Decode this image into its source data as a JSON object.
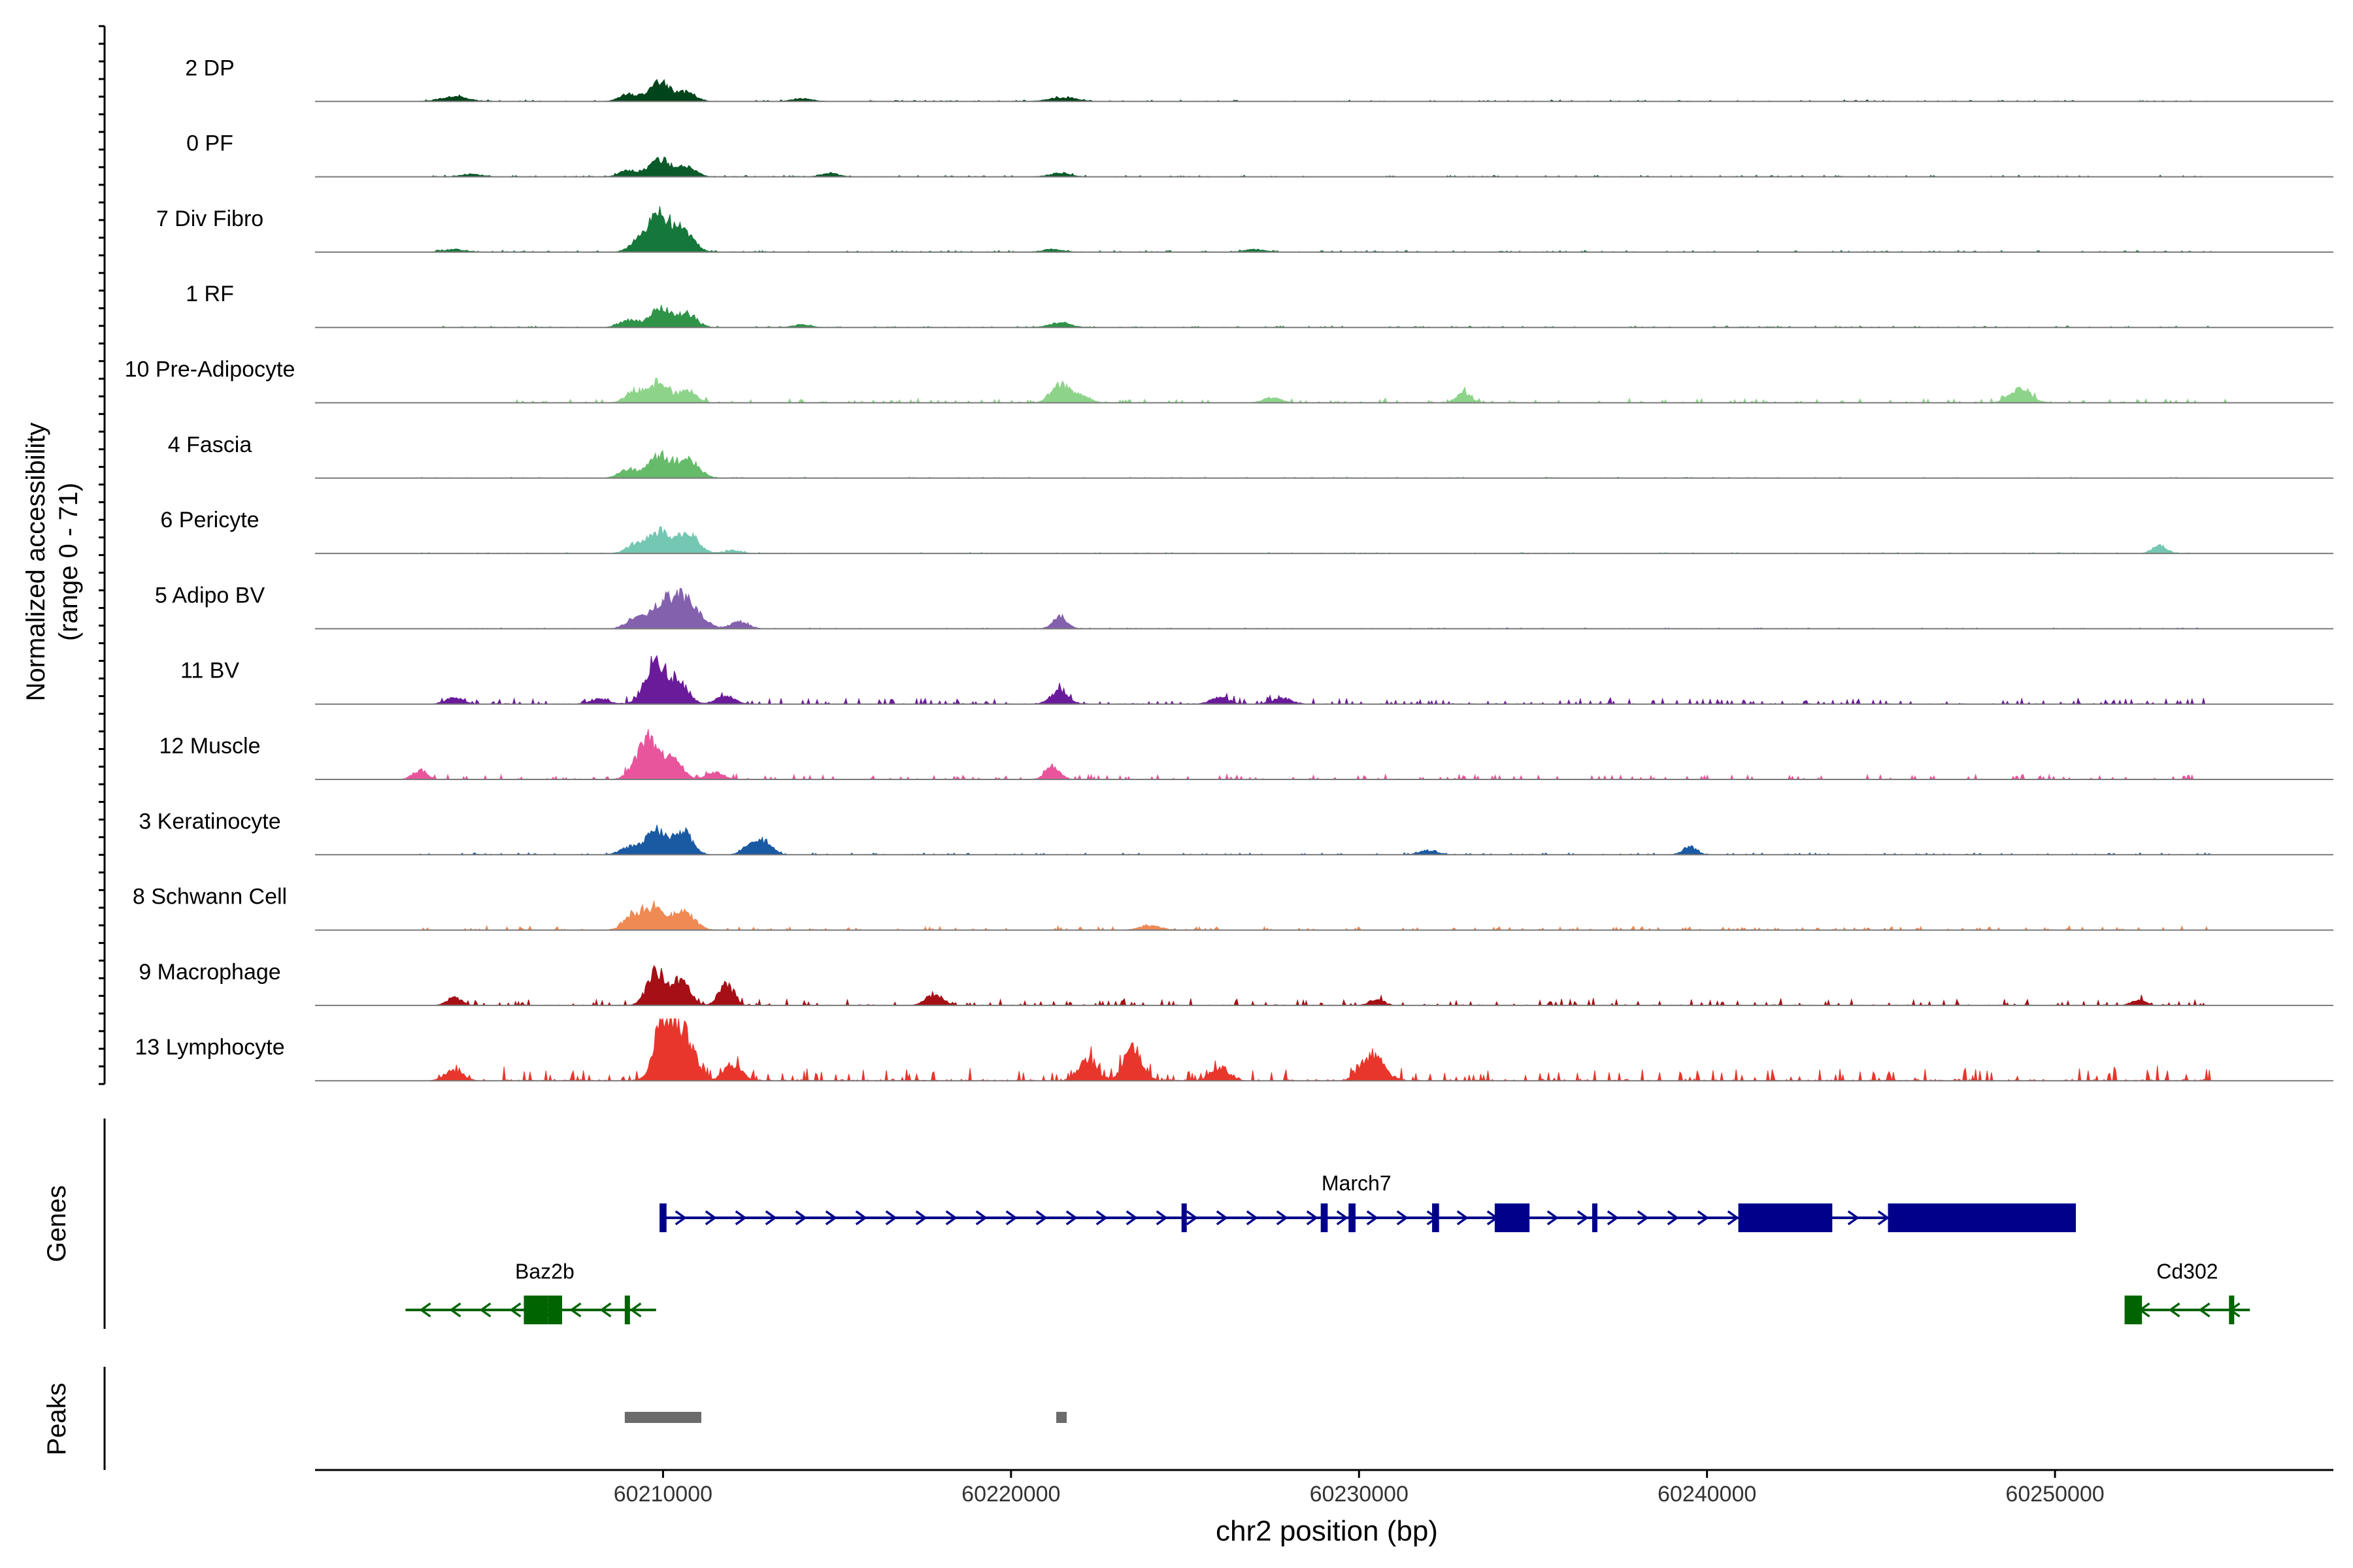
{
  "chart_data": {
    "type": "coverage",
    "chromosome": "chr2",
    "xlim": [
      60200000,
      60258000
    ],
    "xlabel": "chr2 position (bp)",
    "x_ticks": [
      60210000,
      60220000,
      60230000,
      60240000,
      60250000
    ],
    "x_tick_labels": [
      "60210000",
      "60220000",
      "60230000",
      "60240000",
      "60250000"
    ],
    "coverage_panel": {
      "ylabel_line1": "Normalized accessibility",
      "ylabel_line2": "(range 0 - 71)",
      "ylim": [
        0,
        71
      ]
    },
    "tracks": [
      {
        "name": "2 DP",
        "color": "#00441b",
        "peaks": [
          [
            60209900,
            22,
            300
          ],
          [
            60209000,
            8,
            250
          ],
          [
            60210700,
            10,
            250
          ],
          [
            60204000,
            5,
            400
          ],
          [
            60221500,
            4,
            400
          ],
          [
            60214000,
            3,
            300
          ]
        ],
        "noise": 1.2,
        "noise_range": [
          60203000,
          60254500
        ]
      },
      {
        "name": "0 PF",
        "color": "#0b5a2a",
        "peaks": [
          [
            60209900,
            20,
            300
          ],
          [
            60209000,
            7,
            250
          ],
          [
            60210700,
            11,
            250
          ],
          [
            60221400,
            4,
            300
          ],
          [
            60214800,
            4,
            250
          ],
          [
            60204500,
            3,
            300
          ]
        ],
        "noise": 1.2,
        "noise_range": [
          60203000,
          60254500
        ]
      },
      {
        "name": "7 Div Fibro",
        "color": "#16773a",
        "peaks": [
          [
            60209900,
            40,
            350
          ],
          [
            60210600,
            20,
            300
          ],
          [
            60209300,
            10,
            250
          ],
          [
            60204000,
            3,
            300
          ],
          [
            60221200,
            3,
            300
          ],
          [
            60227000,
            3,
            300
          ]
        ],
        "noise": 1.4,
        "noise_range": [
          60203000,
          60254500
        ]
      },
      {
        "name": "1 RF",
        "color": "#2f9348",
        "peaks": [
          [
            60209900,
            22,
            300
          ],
          [
            60210700,
            16,
            250
          ],
          [
            60209000,
            8,
            250
          ],
          [
            60221400,
            5,
            300
          ],
          [
            60214000,
            3,
            250
          ]
        ],
        "noise": 1.2,
        "noise_range": [
          60203000,
          60254500
        ]
      },
      {
        "name": "10 Pre-Adipocyte",
        "color": "#8dd48a",
        "peaks": [
          [
            60209900,
            24,
            250
          ],
          [
            60209200,
            14,
            250
          ],
          [
            60210700,
            14,
            250
          ],
          [
            60221400,
            20,
            250
          ],
          [
            60233000,
            12,
            200
          ],
          [
            60249000,
            15,
            300
          ],
          [
            60222000,
            8,
            250
          ],
          [
            60227500,
            6,
            250
          ]
        ],
        "noise": 3.5,
        "noise_range": [
          60205500,
          60255000
        ]
      },
      {
        "name": "4 Fascia",
        "color": "#66bb6a",
        "peaks": [
          [
            60209900,
            25,
            300
          ],
          [
            60210700,
            22,
            300
          ],
          [
            60209000,
            10,
            250
          ]
        ],
        "noise": 0.8,
        "noise_range": [
          60203000,
          60254500
        ]
      },
      {
        "name": "6 Pericyte",
        "color": "#74c7b2",
        "peaks": [
          [
            60209900,
            24,
            300
          ],
          [
            60210700,
            22,
            300
          ],
          [
            60209200,
            10,
            250
          ],
          [
            60253000,
            9,
            200
          ],
          [
            60212000,
            3,
            250
          ]
        ],
        "noise": 0.8,
        "noise_range": [
          60203000,
          60254500
        ]
      },
      {
        "name": "5 Adipo BV",
        "color": "#8461ad",
        "peaks": [
          [
            60209900,
            24,
            300
          ],
          [
            60210600,
            35,
            400
          ],
          [
            60209200,
            12,
            250
          ],
          [
            60221400,
            14,
            200
          ],
          [
            60212200,
            8,
            250
          ]
        ],
        "noise": 0.8,
        "noise_range": [
          60203000,
          60254500
        ]
      },
      {
        "name": "11 BV",
        "color": "#6a1b9a",
        "peaks": [
          [
            60209800,
            50,
            300
          ],
          [
            60210500,
            22,
            250
          ],
          [
            60211800,
            9,
            250
          ],
          [
            60221400,
            14,
            250
          ],
          [
            60204000,
            7,
            250
          ],
          [
            60208200,
            6,
            250
          ],
          [
            60226000,
            8,
            250
          ],
          [
            60227800,
            7,
            250
          ]
        ],
        "noise": 5.0,
        "noise_range": [
          60203500,
          60254500
        ]
      },
      {
        "name": "12 Muscle",
        "color": "#e8559c",
        "peaks": [
          [
            60209700,
            38,
            250
          ],
          [
            60210300,
            22,
            250
          ],
          [
            60209300,
            20,
            250
          ],
          [
            60221200,
            14,
            200
          ],
          [
            60203000,
            10,
            200
          ],
          [
            60211500,
            8,
            250
          ]
        ],
        "noise": 4.0,
        "noise_range": [
          60203000,
          60254000
        ]
      },
      {
        "name": "3 Keratinocyte",
        "color": "#1a5aa3",
        "peaks": [
          [
            60209800,
            28,
            300
          ],
          [
            60210600,
            25,
            250
          ],
          [
            60212600,
            14,
            250
          ],
          [
            60213000,
            10,
            200
          ],
          [
            60239500,
            9,
            200
          ],
          [
            60209000,
            8,
            250
          ],
          [
            60232000,
            5,
            250
          ]
        ],
        "noise": 1.5,
        "noise_range": [
          60203000,
          60254500
        ]
      },
      {
        "name": "8 Schwann Cell",
        "color": "#ef8a55",
        "peaks": [
          [
            60209700,
            25,
            350
          ],
          [
            60210600,
            20,
            300
          ],
          [
            60209100,
            12,
            250
          ],
          [
            60224000,
            5,
            300
          ]
        ],
        "noise": 3.0,
        "noise_range": [
          60203000,
          60254500
        ]
      },
      {
        "name": "9 Macrophage",
        "color": "#a50f15",
        "peaks": [
          [
            60209800,
            38,
            250
          ],
          [
            60210500,
            28,
            250
          ],
          [
            60211800,
            25,
            200
          ],
          [
            60217800,
            12,
            250
          ],
          [
            60204000,
            9,
            200
          ],
          [
            60230500,
            7,
            200
          ],
          [
            60252400,
            6,
            200
          ]
        ],
        "noise": 5.5,
        "noise_range": [
          60203500,
          60254500
        ]
      },
      {
        "name": "13 Lymphocyte",
        "color": "#e8362c",
        "peaks": [
          [
            60210000,
            70,
            250
          ],
          [
            60210600,
            55,
            300
          ],
          [
            60223500,
            40,
            250
          ],
          [
            60230400,
            30,
            300
          ],
          [
            60222200,
            22,
            250
          ],
          [
            60212000,
            18,
            250
          ],
          [
            60226000,
            16,
            250
          ],
          [
            60204000,
            12,
            250
          ]
        ],
        "noise": 11.0,
        "noise_range": [
          60203500,
          60254500
        ]
      }
    ],
    "genes_panel": {
      "ylabel": "Genes",
      "genes": [
        {
          "name": "March7",
          "strand": "+",
          "color": "#00008b",
          "start": 60209950,
          "end": 60250600,
          "exons": [
            [
              60209900,
              60210100
            ],
            [
              60224900,
              60225000
            ],
            [
              60228900,
              60229100
            ],
            [
              60229700,
              60229900
            ],
            [
              60232100,
              60232300
            ],
            [
              60233900,
              60234900
            ],
            [
              60236700,
              60236800
            ],
            [
              60240900,
              60243600
            ],
            [
              60245200,
              60250600
            ]
          ]
        },
        {
          "name": "Baz2b",
          "strand": "-",
          "color": "#006400",
          "start": 60202600,
          "end": 60209800,
          "exons": [
            [
              60206000,
              60206700
            ],
            [
              60206700,
              60207100
            ],
            [
              60208900,
              60209000
            ]
          ]
        },
        {
          "name": "Cd302",
          "strand": "-",
          "color": "#006400",
          "start": 60252000,
          "end": 60255600,
          "exons": [
            [
              60252000,
              60252500
            ],
            [
              60255000,
              60255100
            ]
          ]
        }
      ]
    },
    "peaks_panel": {
      "ylabel": "Peaks",
      "color": "#6b6b6b",
      "regions": [
        [
          60208900,
          60211100
        ],
        [
          60221300,
          60221600
        ]
      ]
    }
  }
}
